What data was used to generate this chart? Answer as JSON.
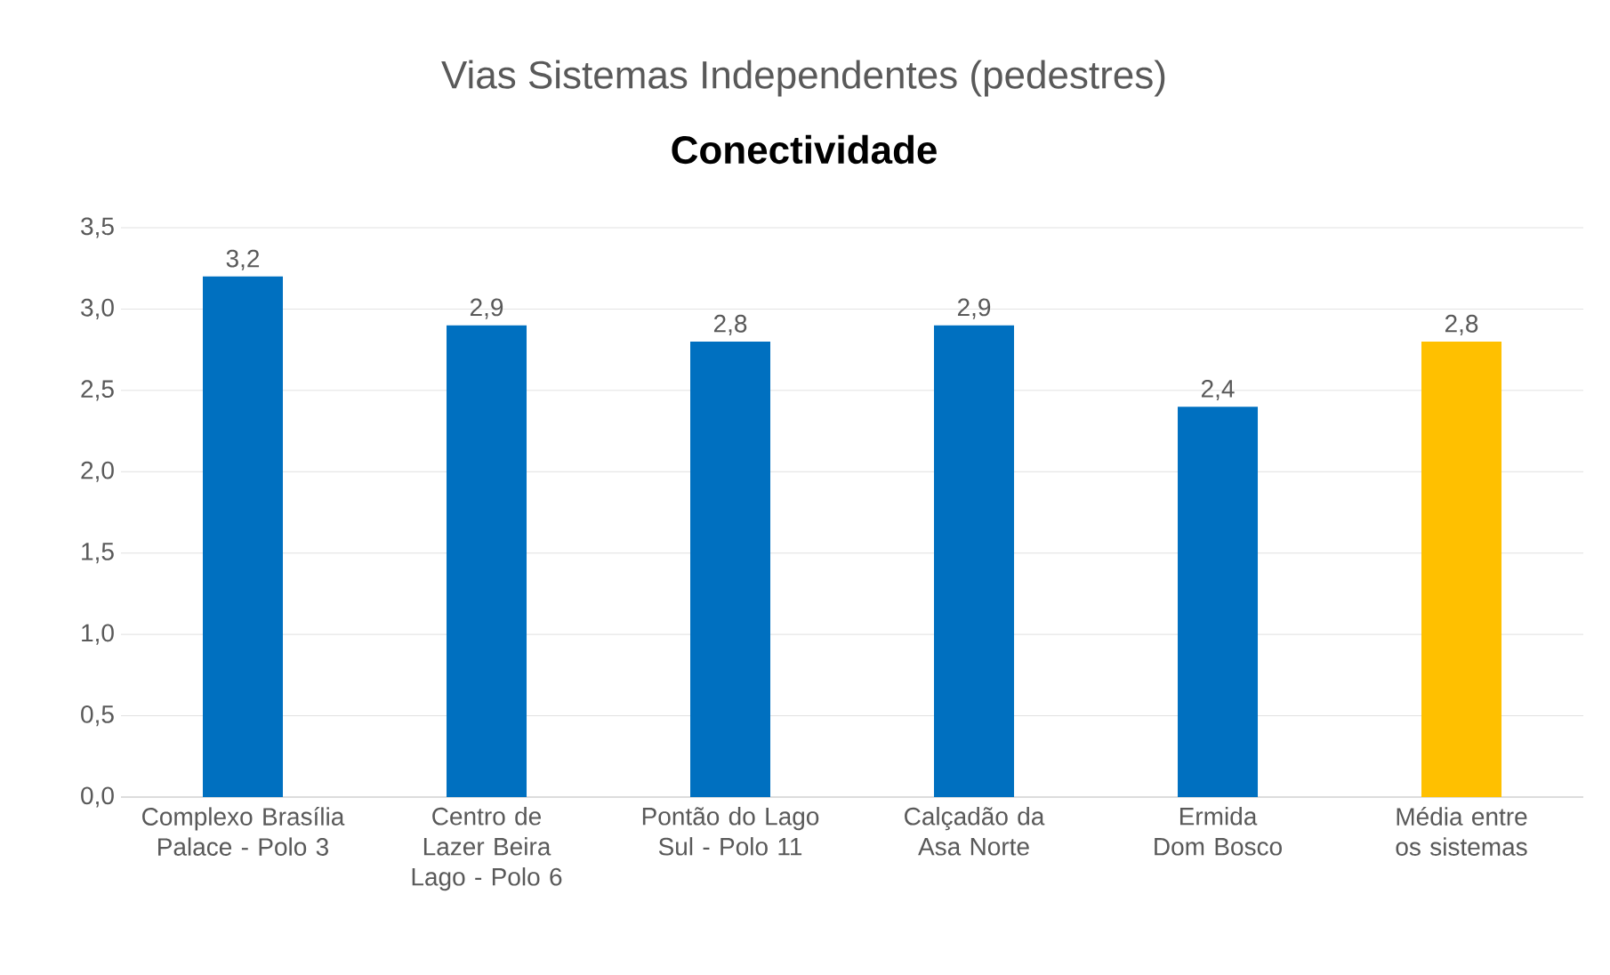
{
  "chart_data": {
    "type": "bar",
    "title": "Vias Sistemas Independentes (pedestres)",
    "subtitle": "Conectividade",
    "categories": [
      "Complexo Brasília Palace - Polo 3",
      "Centro de Lazer Beira Lago - Polo 6",
      "Pontão do Lago Sul - Polo 11",
      "Calçadão da Asa Norte",
      "Ermida Dom Bosco",
      "Média entre os sistemas"
    ],
    "values": [
      3.2,
      2.9,
      2.8,
      2.9,
      2.4,
      2.8
    ],
    "value_labels": [
      "3,2",
      "2,9",
      "2,8",
      "2,9",
      "2,4",
      "2,8"
    ],
    "colors": [
      "#0070c0",
      "#0070c0",
      "#0070c0",
      "#0070c0",
      "#0070c0",
      "#ffc000"
    ],
    "ylim": [
      0,
      3.5
    ],
    "yticks": [
      {
        "value": 0,
        "label": "0,0"
      },
      {
        "value": 0.5,
        "label": "0,5"
      },
      {
        "value": 1,
        "label": "1,0"
      },
      {
        "value": 1.5,
        "label": "1,5"
      },
      {
        "value": 2,
        "label": "2,0"
      },
      {
        "value": 2.5,
        "label": "2,5"
      },
      {
        "value": 3,
        "label": "3,0"
      },
      {
        "value": 3.5,
        "label": "3,5"
      }
    ],
    "grid": "y"
  }
}
